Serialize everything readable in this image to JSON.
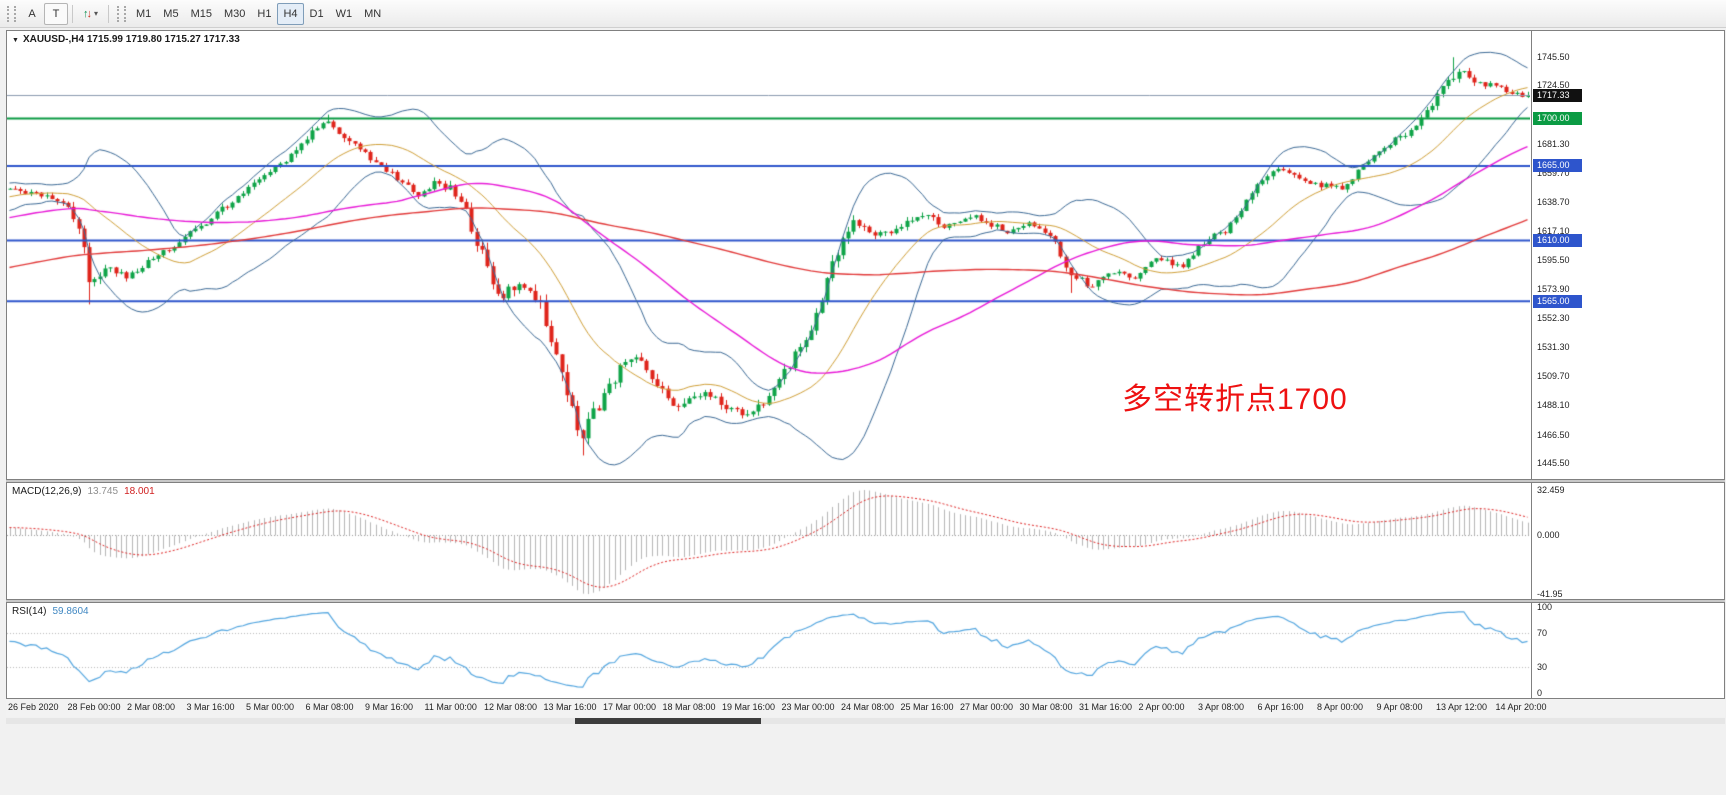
{
  "toolbar": {
    "tools": [
      {
        "label": "A"
      },
      {
        "label": "T"
      }
    ],
    "timeframes": [
      "M1",
      "M5",
      "M15",
      "M30",
      "H1",
      "H4",
      "D1",
      "W1",
      "MN"
    ],
    "active_timeframe": "H4"
  },
  "icons": {
    "symbol_marker": "▼",
    "dropdown_caret": "▾",
    "arrow_up": "↑",
    "arrow_down": "↓"
  },
  "chart": {
    "header": "XAUUSD-,H4 1715.99 1719.80 1715.27 1717.33"
  },
  "annotation": {
    "text": "多空转折点1700",
    "color": "#ee1111"
  },
  "macd_panel": {
    "name": "MACD(12,26,9)",
    "main_value": "13.745",
    "signal_value": "18.001",
    "axis_labels": [
      "32.459",
      "0.000",
      "-41.95"
    ]
  },
  "rsi_panel": {
    "name": "RSI(14)",
    "value": "59.8604",
    "axis_labels": [
      "100",
      "70",
      "30",
      "0"
    ]
  },
  "price_axis": {
    "ticks": [
      "1745.50",
      "1724.50",
      "1681.30",
      "1659.70",
      "1638.70",
      "1617.10",
      "1595.50",
      "1573.90",
      "1552.30",
      "1531.30",
      "1509.70",
      "1488.10",
      "1466.50",
      "1445.50"
    ],
    "current_tag": "1717.33"
  },
  "time_axis": {
    "labels": [
      "26 Feb 2020",
      "28 Feb 00:00",
      "2 Mar 08:00",
      "3 Mar 16:00",
      "5 Mar 00:00",
      "6 Mar 08:00",
      "9 Mar 16:00",
      "11 Mar 00:00",
      "12 Mar 08:00",
      "13 Mar 16:00",
      "17 Mar 00:00",
      "18 Mar 08:00",
      "19 Mar 16:00",
      "23 Mar 00:00",
      "24 Mar 08:00",
      "25 Mar 16:00",
      "27 Mar 00:00",
      "30 Mar 08:00",
      "31 Mar 16:00",
      "2 Apr 00:00",
      "3 Apr 08:00",
      "6 Apr 16:00",
      "8 Apr 00:00",
      "9 Apr 08:00",
      "13 Apr 12:00",
      "14 Apr 20:00"
    ]
  },
  "colors": {
    "bull": "#0fa448",
    "bear": "#df241b",
    "bb": "#3c6a96",
    "bb_mid": "#d0a038",
    "ma_magenta": "#e81ad8",
    "ma_red": "#e23b3b",
    "level_green": "#0b9b44",
    "level_blue": "#2e55cc",
    "current_line": "#8a9ab0",
    "current_tag_bg": "#111111",
    "macd_hist": "#b6b6b6",
    "macd_signal": "#e02626",
    "rsi": "#55a7e0"
  },
  "chart_data": {
    "type": "candlestick",
    "symbol": "XAUUSD-",
    "timeframe": "H4",
    "title": "XAUUSD-,H4",
    "last_ohlc": {
      "open": 1715.99,
      "high": 1719.8,
      "low": 1715.27,
      "close": 1717.33
    },
    "current_price": 1717.33,
    "visible_bars": 287,
    "ylim": [
      1433.7,
      1764.7
    ],
    "levels": [
      {
        "price": 1700.0,
        "label": "1700.00",
        "color": "#0b9b44"
      },
      {
        "price": 1665.0,
        "label": "1665.00",
        "color": "#2e55cc"
      },
      {
        "price": 1610.0,
        "label": "1610.00",
        "color": "#2e55cc"
      },
      {
        "price": 1565.0,
        "label": "1565.00",
        "color": "#2e55cc"
      }
    ],
    "price_path": [
      [
        0.0,
        1650,
        4
      ],
      [
        0.018,
        1644,
        4
      ],
      [
        0.036,
        1640,
        5
      ],
      [
        0.048,
        1612,
        8
      ],
      [
        0.054,
        1574,
        9
      ],
      [
        0.062,
        1590,
        6
      ],
      [
        0.078,
        1584,
        5
      ],
      [
        0.096,
        1598,
        4
      ],
      [
        0.114,
        1611,
        4
      ],
      [
        0.132,
        1626,
        4
      ],
      [
        0.152,
        1643,
        4
      ],
      [
        0.172,
        1660,
        4
      ],
      [
        0.19,
        1678,
        5
      ],
      [
        0.201,
        1692,
        5
      ],
      [
        0.21,
        1697,
        5
      ],
      [
        0.222,
        1686,
        5
      ],
      [
        0.236,
        1671,
        5
      ],
      [
        0.252,
        1659,
        4
      ],
      [
        0.268,
        1644,
        5
      ],
      [
        0.282,
        1653,
        5
      ],
      [
        0.296,
        1644,
        6
      ],
      [
        0.31,
        1602,
        9
      ],
      [
        0.324,
        1567,
        9
      ],
      [
        0.338,
        1580,
        9
      ],
      [
        0.352,
        1556,
        10
      ],
      [
        0.366,
        1500,
        12
      ],
      [
        0.376,
        1462,
        12
      ],
      [
        0.386,
        1484,
        9
      ],
      [
        0.4,
        1512,
        8
      ],
      [
        0.414,
        1525,
        7
      ],
      [
        0.428,
        1502,
        8
      ],
      [
        0.442,
        1485,
        7
      ],
      [
        0.456,
        1497,
        6
      ],
      [
        0.47,
        1489,
        6
      ],
      [
        0.486,
        1479,
        6
      ],
      [
        0.5,
        1492,
        6
      ],
      [
        0.514,
        1518,
        7
      ],
      [
        0.528,
        1545,
        7
      ],
      [
        0.542,
        1592,
        8
      ],
      [
        0.556,
        1625,
        7
      ],
      [
        0.57,
        1614,
        5
      ],
      [
        0.586,
        1620,
        5
      ],
      [
        0.6,
        1631,
        5
      ],
      [
        0.616,
        1621,
        4
      ],
      [
        0.636,
        1627,
        4
      ],
      [
        0.656,
        1617,
        4
      ],
      [
        0.672,
        1622,
        4
      ],
      [
        0.686,
        1615,
        4
      ],
      [
        0.698,
        1585,
        6
      ],
      [
        0.712,
        1576,
        5
      ],
      [
        0.726,
        1588,
        4
      ],
      [
        0.742,
        1583,
        4
      ],
      [
        0.756,
        1597,
        4
      ],
      [
        0.772,
        1591,
        4
      ],
      [
        0.788,
        1610,
        4
      ],
      [
        0.802,
        1618,
        4
      ],
      [
        0.818,
        1645,
        5
      ],
      [
        0.832,
        1662,
        5
      ],
      [
        0.848,
        1657,
        4
      ],
      [
        0.862,
        1651,
        4
      ],
      [
        0.878,
        1648,
        4
      ],
      [
        0.892,
        1666,
        4
      ],
      [
        0.908,
        1681,
        4
      ],
      [
        0.922,
        1690,
        4
      ],
      [
        0.936,
        1708,
        5
      ],
      [
        0.948,
        1730,
        6
      ],
      [
        0.956,
        1734,
        5
      ],
      [
        0.968,
        1727,
        4
      ],
      [
        0.982,
        1722,
        4
      ],
      [
        1.0,
        1716.8,
        3
      ]
    ],
    "pivots": [
      {
        "f": 0.054,
        "type": "low",
        "price": 1562.7
      },
      {
        "f": 0.21,
        "type": "high",
        "price": 1702.9
      },
      {
        "f": 0.376,
        "type": "low",
        "price": 1451.1
      },
      {
        "f": 0.7,
        "type": "low",
        "price": 1571.2
      },
      {
        "f": 0.95,
        "type": "high",
        "price": 1745.3
      }
    ],
    "indicators": {
      "bollinger": {
        "period": 20,
        "deviation": 2
      },
      "ma_magenta_period": 60,
      "ma_red_period": 150,
      "macd": {
        "fast": 12,
        "slow": 26,
        "signal": 9,
        "range": [
          -41.95,
          32.459
        ]
      },
      "rsi": {
        "period": 14,
        "levels": [
          30,
          70
        ],
        "range": [
          0,
          100
        ]
      }
    }
  }
}
